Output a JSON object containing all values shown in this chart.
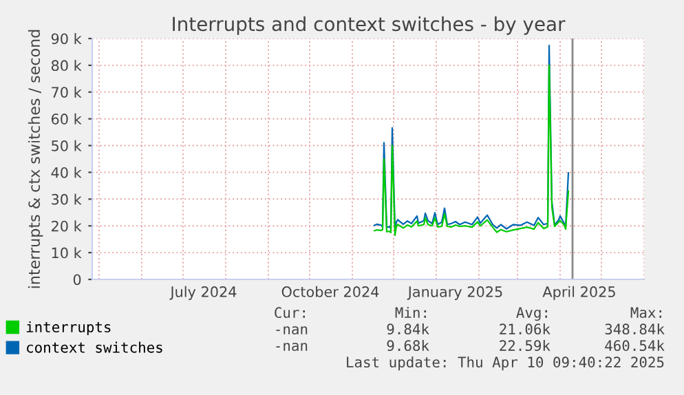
{
  "chart_data": {
    "type": "line",
    "title": "Interrupts and context switches - by year",
    "ylabel": "interrupts & ctx switches / second",
    "x": [
      "2024-11-17",
      "2024-11-19",
      "2024-11-22",
      "2024-11-23",
      "2024-11-24",
      "2024-11-26",
      "2024-11-28",
      "2024-11-29",
      "2024-11-30",
      "2024-12-02",
      "2024-12-03",
      "2024-12-04",
      "2024-12-08",
      "2024-12-11",
      "2024-12-14",
      "2024-12-18",
      "2024-12-19",
      "2024-12-23",
      "2024-12-24",
      "2024-12-26",
      "2024-12-29",
      "2024-12-31",
      "2025-01-02",
      "2025-01-05",
      "2025-01-07",
      "2025-01-09",
      "2025-01-12",
      "2025-01-15",
      "2025-01-18",
      "2025-01-22",
      "2025-01-27",
      "2025-01-31",
      "2025-02-02",
      "2025-02-07",
      "2025-02-11",
      "2025-02-14",
      "2025-02-17",
      "2025-02-21",
      "2025-02-26",
      "2025-03-03",
      "2025-03-08",
      "2025-03-13",
      "2025-03-16",
      "2025-03-20",
      "2025-03-23",
      "2025-03-24",
      "2025-03-26",
      "2025-03-28",
      "2025-03-31",
      "2025-04-01",
      "2025-04-04",
      "2025-04-05",
      "2025-04-07"
    ],
    "series": [
      {
        "name": "interrupts",
        "color": "#00cc00",
        "values": [
          18200,
          18500,
          18300,
          18600,
          45000,
          17800,
          18000,
          17500,
          50000,
          16500,
          19800,
          20500,
          19200,
          20300,
          19600,
          21800,
          20000,
          20500,
          23000,
          20500,
          20000,
          23000,
          19600,
          19800,
          24500,
          19800,
          19600,
          20300,
          19800,
          20000,
          19500,
          21500,
          20000,
          22200,
          19500,
          17600,
          18600,
          17800,
          18500,
          19000,
          19500,
          18800,
          21200,
          19000,
          19600,
          80000,
          27000,
          19800,
          21500,
          22000,
          20300,
          18800,
          33000
        ]
      },
      {
        "name": "context switches",
        "color": "#0066b3",
        "values": [
          20200,
          20600,
          20200,
          19700,
          51100,
          19400,
          19700,
          18900,
          56600,
          18900,
          21400,
          22300,
          20600,
          21800,
          20900,
          23700,
          21000,
          21900,
          24700,
          21900,
          20900,
          24900,
          20500,
          21400,
          26600,
          20500,
          20900,
          21600,
          20500,
          21400,
          20500,
          23300,
          21000,
          24000,
          20500,
          19200,
          20500,
          18900,
          20500,
          20200,
          21400,
          20200,
          23100,
          20500,
          20900,
          87400,
          29100,
          20200,
          22300,
          23700,
          20900,
          19700,
          39800
        ]
      }
    ],
    "xlim": [
      "2024-04-26",
      "2025-06-01"
    ],
    "xticks": [
      {
        "value": "2024-07-16",
        "label": "July 2024"
      },
      {
        "value": "2024-10-16",
        "label": "October 2024"
      },
      {
        "value": "2025-01-15",
        "label": "January 2025"
      },
      {
        "value": "2025-04-15",
        "label": "April 2025"
      }
    ],
    "ylim": [
      0,
      90000
    ],
    "yticks": [
      {
        "value": 0,
        "label": "0"
      },
      {
        "value": 10000,
        "label": "10 k"
      },
      {
        "value": 20000,
        "label": "20 k"
      },
      {
        "value": 30000,
        "label": "30 k"
      },
      {
        "value": 40000,
        "label": "40 k"
      },
      {
        "value": 50000,
        "label": "50 k"
      },
      {
        "value": 60000,
        "label": "60 k"
      },
      {
        "value": 70000,
        "label": "70 k"
      },
      {
        "value": 80000,
        "label": "80 k"
      },
      {
        "value": 90000,
        "label": "90 k"
      }
    ],
    "ref_lines": [
      {
        "axis": "x",
        "value": "2025-04-10",
        "color": "#888888"
      }
    ],
    "grid": true,
    "legend": "bottom",
    "marker": "none",
    "line_style": "solid",
    "annotations": [
      "Cur:",
      "Min:",
      "Avg:",
      "Max:",
      "-nan",
      "9.84k",
      "21.06k",
      "348.84k",
      "-nan",
      "9.68k",
      "22.59k",
      "460.54k",
      "Last update: Thu Apr 10 09:40:22 2025"
    ]
  }
}
